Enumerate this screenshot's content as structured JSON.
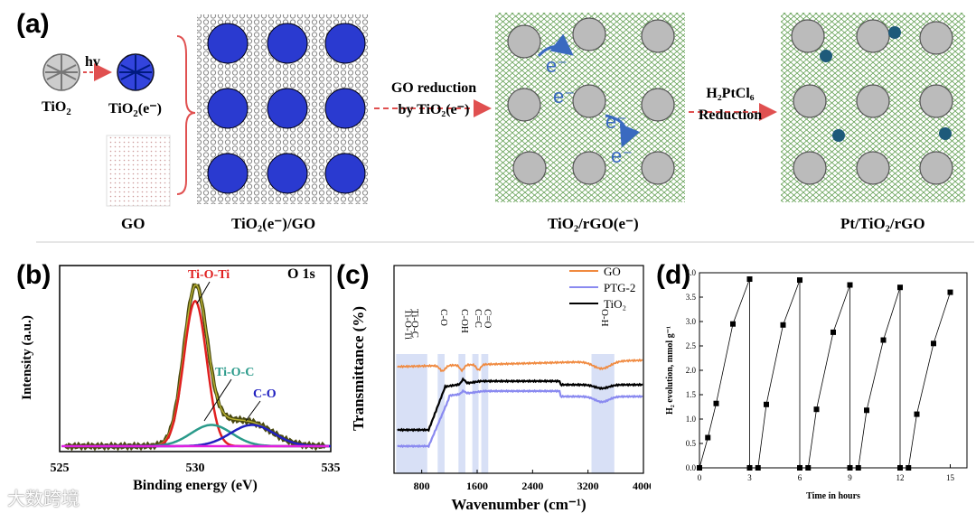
{
  "panel_a": {
    "label": "(a)",
    "arrow_hv": "hv",
    "tio2": "TiO",
    "tio2_sub": "2",
    "tio2e": "TiO",
    "tio2e_sub": "2",
    "tio2e_sup": "(e",
    "tio2e_end": "⁻)",
    "go": "GO",
    "composite": "TiO₂(e⁻)/GO",
    "go_reduction_line1": "GO reduction",
    "go_reduction_line2": "by TiO₂(e⁻)",
    "rgo": "TiO₂/rGO(e⁻)",
    "h2ptcl6": "H₂PtCl₆",
    "reduction": "Reduction",
    "final": "Pt/TiO₂/rGO",
    "electron": "e⁻"
  },
  "panel_b": {
    "label": "(b)",
    "title": "O 1s",
    "xlabel": "Binding energy (eV)",
    "ylabel": "Intensity (a.u.)",
    "peaks": [
      "Ti-O-Ti",
      "Ti-O-C",
      "C-O"
    ],
    "peak_colors": [
      "#e02020",
      "#2a9a8a",
      "#2020c0"
    ]
  },
  "panel_c": {
    "label": "(c)",
    "xlabel": "Wavenumber (cm⁻¹)",
    "ylabel": "Transmittance (%)",
    "legend": [
      "GO",
      "PTG-2",
      "TiO₂"
    ],
    "legend_colors": [
      "#f08a40",
      "#8a8af0",
      "#000000"
    ],
    "bands": [
      "Ti-O-Ti",
      "Ti-O-C",
      "C-O",
      "C-OH",
      "C=C",
      "C=O",
      "O-H"
    ]
  },
  "panel_d": {
    "label": "(d)",
    "xlabel": "Time in hours",
    "ylabel": "H₂ evolution, mmol g⁻¹"
  },
  "chart_data": [
    {
      "type": "line",
      "title": "O 1s",
      "xlabel": "Binding energy (eV)",
      "ylabel": "Intensity (a.u.)",
      "xlim": [
        525,
        535
      ],
      "xticks": [
        "525",
        "530",
        "535"
      ],
      "series": [
        {
          "name": "Ti-O-Ti",
          "center": 530.0,
          "height": 0.82
        },
        {
          "name": "Ti-O-C",
          "center": 530.6,
          "height": 0.12
        },
        {
          "name": "C-O",
          "center": 532.1,
          "height": 0.12
        }
      ]
    },
    {
      "type": "line",
      "xlabel": "Wavenumber (cm⁻¹)",
      "ylabel": "Transmittance (%)",
      "xlim": [
        400,
        4000
      ],
      "xticks": [
        "800",
        "1600",
        "2400",
        "3200",
        "4000"
      ],
      "series": [
        {
          "name": "GO",
          "color": "#f08a40"
        },
        {
          "name": "PTG-2",
          "color": "#8a8af0"
        },
        {
          "name": "TiO₂",
          "color": "#000000"
        }
      ]
    },
    {
      "type": "line",
      "xlabel": "Time in hours",
      "ylabel": "H₂ evolution, mmol g⁻¹",
      "xlim": [
        0,
        16
      ],
      "ylim": [
        0,
        4.0
      ],
      "xticks": [
        "0",
        "3",
        "6",
        "9",
        "12",
        "15"
      ],
      "yticks": [
        "0.0",
        "0.5",
        "1.0",
        "1.5",
        "2.0",
        "2.5",
        "3.0",
        "3.5",
        "4.0"
      ],
      "x": [
        0,
        0.5,
        1,
        2,
        3,
        3,
        3.5,
        4,
        5,
        6,
        6,
        6.5,
        7,
        8,
        9,
        9,
        9.5,
        10,
        11,
        12,
        12,
        12.5,
        13,
        14,
        15
      ],
      "y": [
        0,
        0.62,
        1.32,
        2.95,
        3.87,
        0,
        0,
        1.3,
        2.93,
        3.85,
        0,
        0,
        1.2,
        2.78,
        3.75,
        0,
        0,
        1.18,
        2.62,
        3.7,
        0,
        0,
        1.1,
        2.55,
        3.6
      ]
    }
  ],
  "watermark": "大数跨境"
}
